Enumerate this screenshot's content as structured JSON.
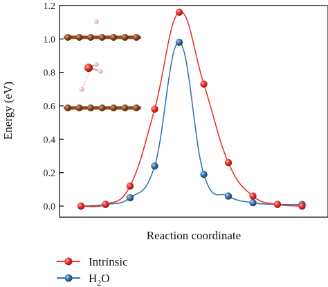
{
  "chart_data": {
    "type": "line",
    "title": "",
    "xlabel": "Reaction coordinate",
    "ylabel": "Energy (eV)",
    "ylim": [
      0.0,
      1.2
    ],
    "yticks": [
      "0.0",
      "0.2",
      "0.4",
      "0.6",
      "0.8",
      "1.0",
      "1.2"
    ],
    "xaxis_ticks_labeled": false,
    "grid": false,
    "legend_position": "bottom-left",
    "x": [
      0,
      1,
      2,
      3,
      4,
      5,
      6,
      7,
      8,
      9
    ],
    "series": [
      {
        "name": "Intrinsic",
        "color": "#e8322e",
        "values": [
          0.0,
          0.01,
          0.12,
          0.58,
          1.16,
          0.73,
          0.26,
          0.06,
          0.01,
          0.0
        ]
      },
      {
        "name": "H2O",
        "legend_text": "H",
        "legend_subscript": "2",
        "legend_suffix": "O",
        "color": "#3a73a8",
        "values": [
          0.0,
          0.01,
          0.05,
          0.24,
          0.98,
          0.19,
          0.06,
          0.02,
          0.01,
          0.01
        ]
      }
    ],
    "inset": {
      "description": "atomic structure: water molecule between two graphene-like layers",
      "layer_color": "#8a4a1f",
      "oxygen_color": "#e0302a",
      "hydrogen_color": "#f2c2c2"
    }
  }
}
